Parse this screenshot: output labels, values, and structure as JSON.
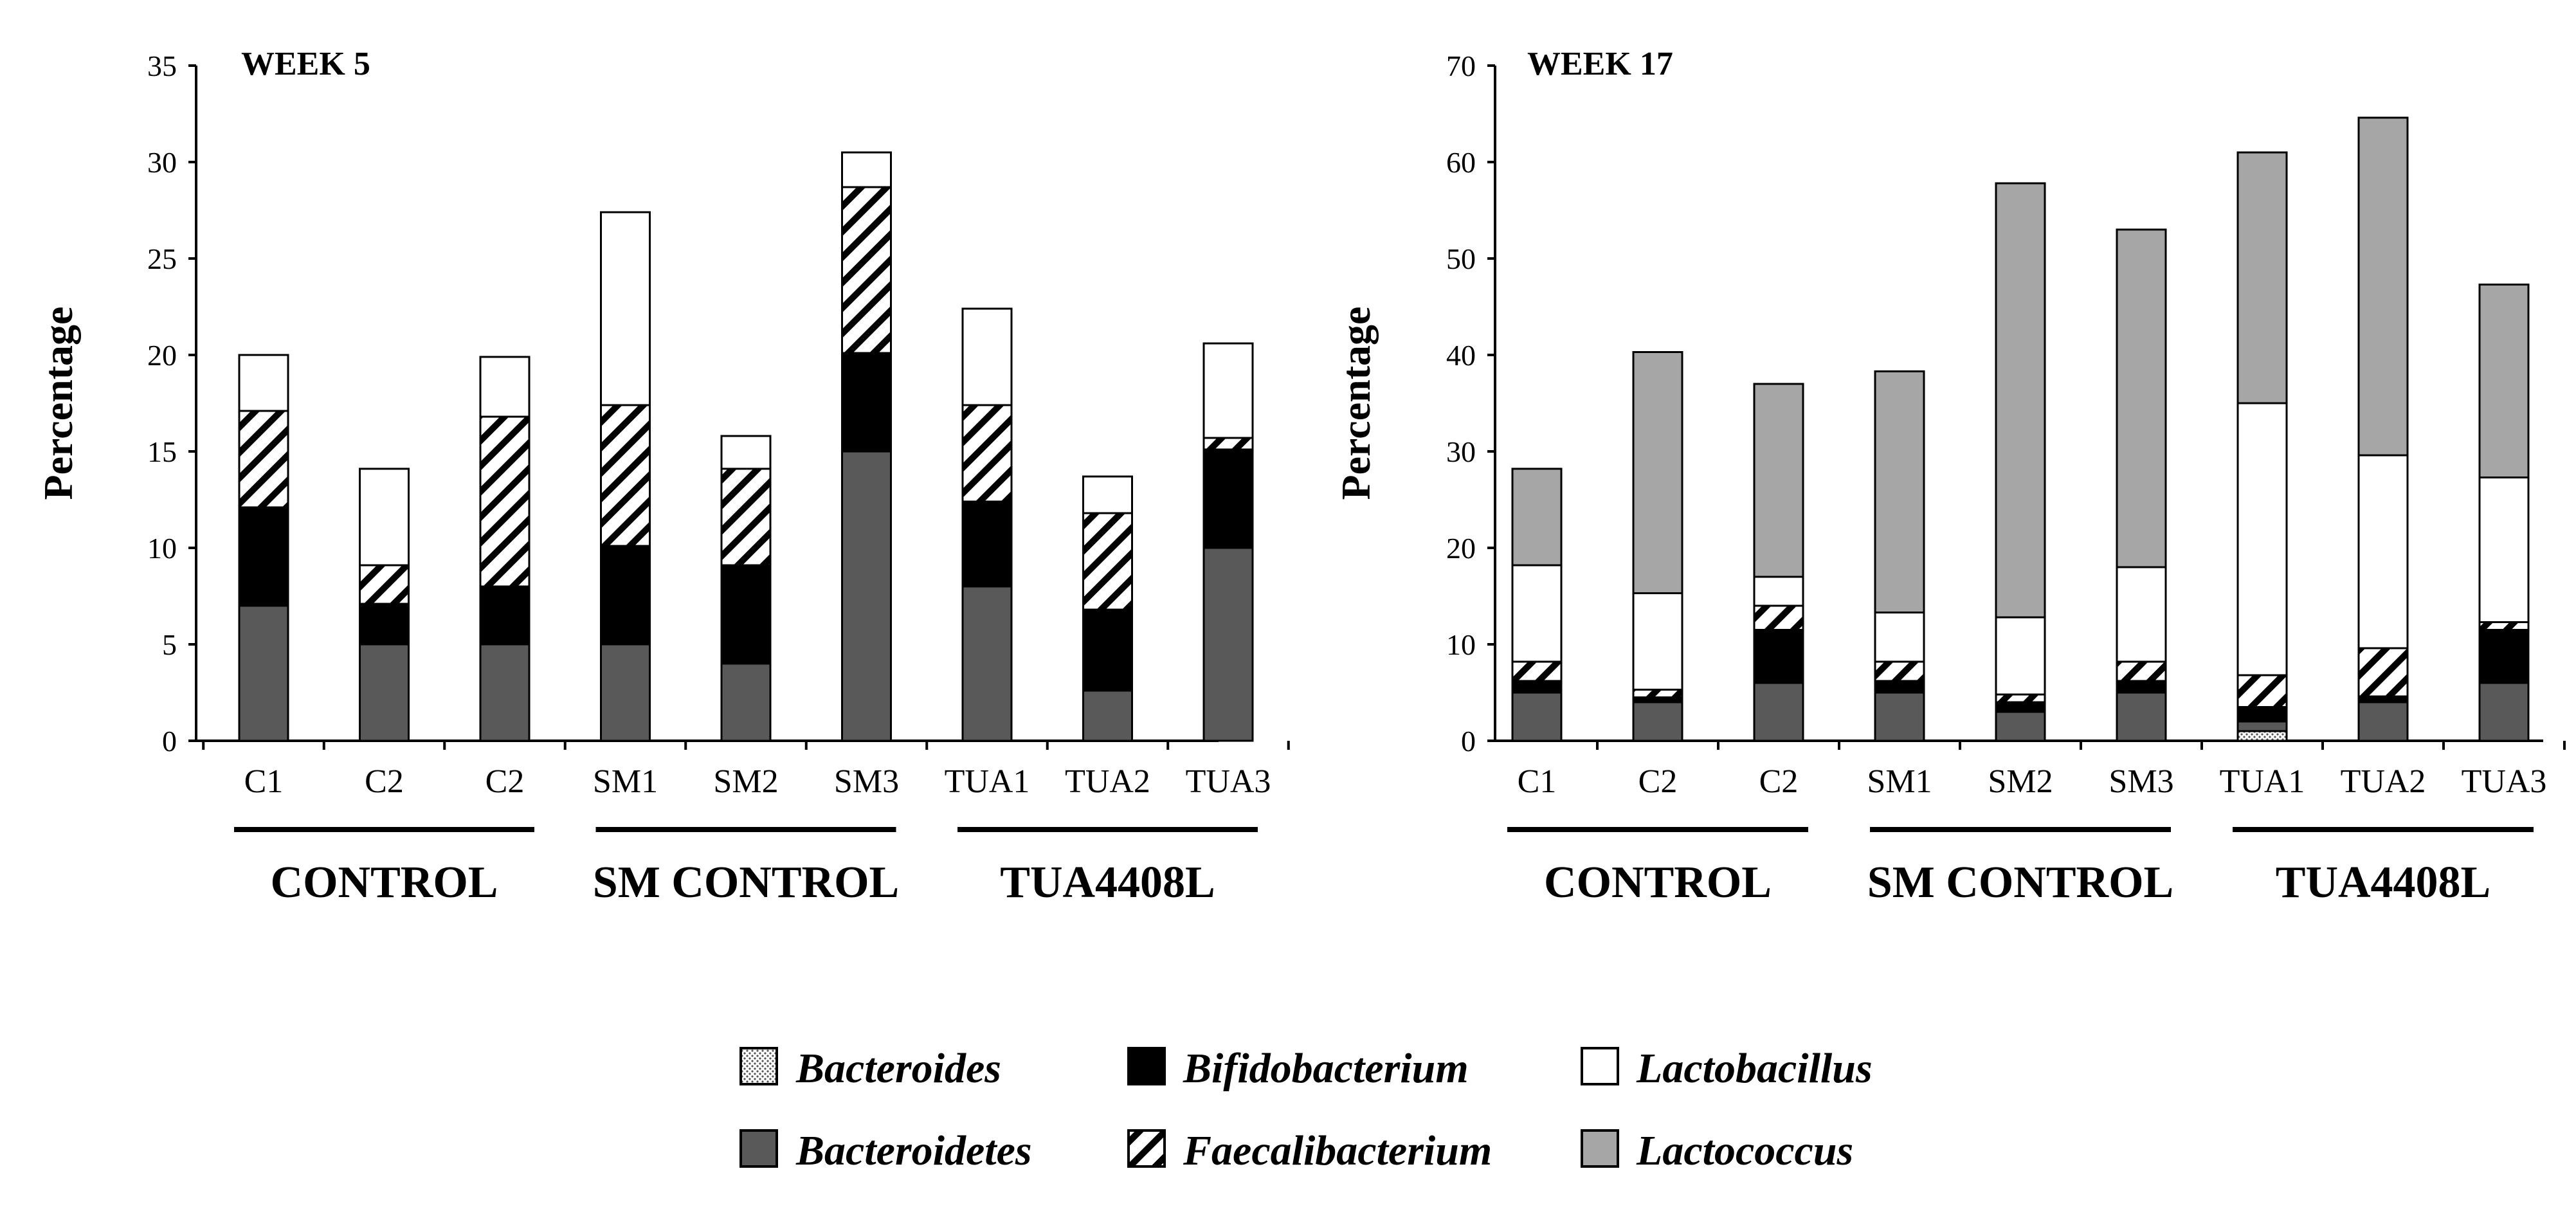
{
  "chart_data": [
    {
      "type": "bar",
      "stacked": true,
      "title": "WEEK 5",
      "ylabel": "Percentage",
      "xlabel": "",
      "ylim": [
        0,
        35
      ],
      "yticks": [
        0,
        5,
        10,
        15,
        20,
        25,
        30,
        35
      ],
      "grid": false,
      "categories": [
        "C1",
        "C2",
        "C2",
        "SM1",
        "SM2",
        "SM3",
        "TUA1",
        "TUA2",
        "TUA3"
      ],
      "groups": [
        {
          "label": "CONTROL",
          "indices": [
            0,
            1,
            2
          ]
        },
        {
          "label": "SM CONTROL",
          "indices": [
            3,
            4,
            5
          ]
        },
        {
          "label": "TUA4408L",
          "indices": [
            6,
            7,
            8
          ]
        }
      ],
      "series": [
        {
          "name": "Bacteroides",
          "values": [
            0,
            0,
            0,
            0,
            0,
            0,
            0,
            0,
            0
          ]
        },
        {
          "name": "Bacteroidetes",
          "values": [
            7,
            5,
            5,
            5,
            4,
            15,
            8,
            2.6,
            10
          ]
        },
        {
          "name": "Bifidobacterium",
          "values": [
            5.1,
            2.1,
            3,
            5.1,
            5.1,
            5.1,
            4.4,
            4.2,
            5.1
          ]
        },
        {
          "name": "Faecalibacterium",
          "values": [
            5,
            2,
            8.8,
            7.3,
            5,
            8.6,
            5,
            5,
            0.6
          ]
        },
        {
          "name": "Lactobacillus",
          "values": [
            2.9,
            5,
            3.1,
            10,
            1.7,
            1.8,
            5,
            1.9,
            4.9
          ]
        },
        {
          "name": "Lactococcus",
          "values": [
            0,
            0,
            0,
            0,
            0,
            0,
            0,
            0,
            0
          ]
        }
      ]
    },
    {
      "type": "bar",
      "stacked": true,
      "title": "WEEK 17",
      "ylabel": "Percentage",
      "xlabel": "",
      "ylim": [
        0,
        70
      ],
      "yticks": [
        0,
        10,
        20,
        30,
        40,
        50,
        60,
        70
      ],
      "grid": false,
      "categories": [
        "C1",
        "C2",
        "C2",
        "SM1",
        "SM2",
        "SM3",
        "TUA1",
        "TUA2",
        "TUA3"
      ],
      "groups": [
        {
          "label": "CONTROL",
          "indices": [
            0,
            1,
            2
          ]
        },
        {
          "label": "SM CONTROL",
          "indices": [
            3,
            4,
            5
          ]
        },
        {
          "label": "TUA4408L",
          "indices": [
            6,
            7,
            8
          ]
        }
      ],
      "series": [
        {
          "name": "Bacteroides",
          "values": [
            0,
            0,
            0,
            0,
            0,
            0,
            1,
            0,
            0
          ]
        },
        {
          "name": "Bacteroidetes",
          "values": [
            5,
            4,
            6,
            5,
            3,
            5,
            1,
            4,
            6
          ]
        },
        {
          "name": "Bifidobacterium",
          "values": [
            1.2,
            0.5,
            5.5,
            1.2,
            1,
            1.2,
            1.5,
            0.6,
            5.5
          ]
        },
        {
          "name": "Faecalibacterium",
          "values": [
            2,
            0.8,
            2.5,
            2,
            0.8,
            2,
            3.3,
            5,
            0.8
          ]
        },
        {
          "name": "Lactobacillus",
          "values": [
            10,
            10,
            3,
            5.1,
            8,
            9.8,
            28.2,
            20,
            15
          ]
        },
        {
          "name": "Lactococcus",
          "values": [
            10,
            25,
            20,
            25,
            45,
            35,
            26,
            35,
            20
          ]
        }
      ]
    }
  ],
  "legend": {
    "items": [
      {
        "label": "Bacteroides"
      },
      {
        "label": "Bifidobacterium"
      },
      {
        "label": "Lactobacillus"
      },
      {
        "label": "Bacteroidetes"
      },
      {
        "label": "Faecalibacterium"
      },
      {
        "label": "Lactococcus"
      }
    ]
  },
  "colors": {
    "Bacteroides": "#e8e8e8",
    "Bacteroidetes": "#595959",
    "Bifidobacterium": "#000000",
    "Faecalibacterium": "hatch",
    "Lactobacillus": "#ffffff",
    "Lactococcus": "#a6a6a6"
  }
}
